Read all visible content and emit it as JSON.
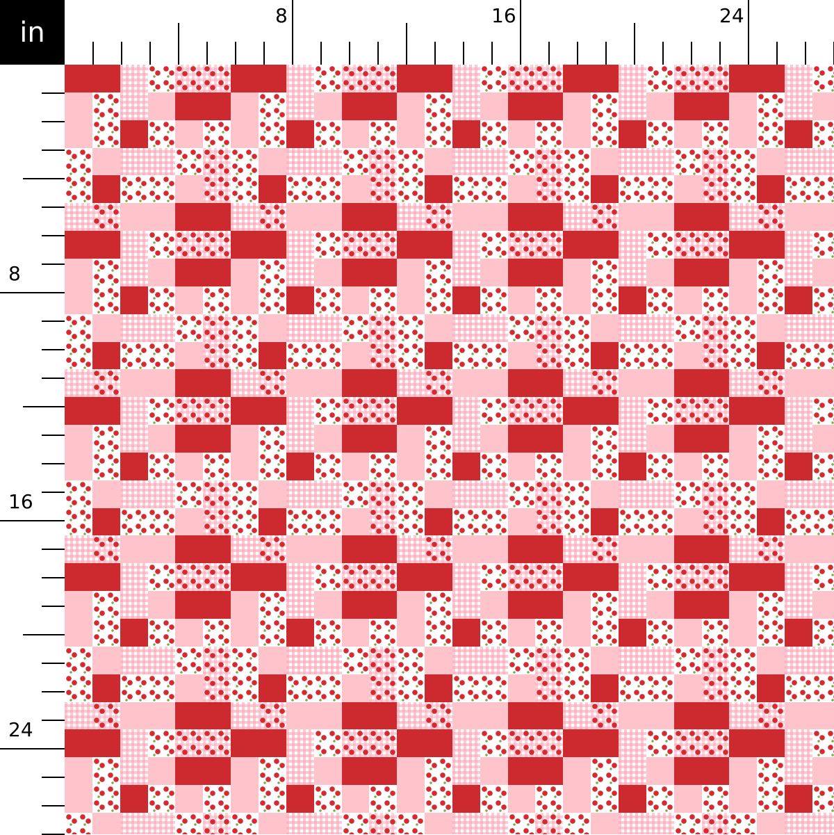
{
  "ruler": {
    "unit": "in",
    "top_labels": [
      "8",
      "16",
      "24"
    ],
    "left_labels": [
      "8",
      "16",
      "24"
    ]
  },
  "pattern": {
    "description_legend": {
      "R": "solid red",
      "P": "solid pink",
      "G": "pink gingham",
      "C": "cherries on white",
      "X": "cherries on gingham"
    },
    "tile": [
      "RRGCXX",
      "PCGPRR",
      "PCRCPC",
      "CPGGCX",
      "CRCCPX",
      "GXPPRR"
    ],
    "colors": {
      "red": "#cc2a2f",
      "pink": "#ffc3cc",
      "cherry": "#d42a30",
      "leaf": "#7aa84a"
    }
  }
}
